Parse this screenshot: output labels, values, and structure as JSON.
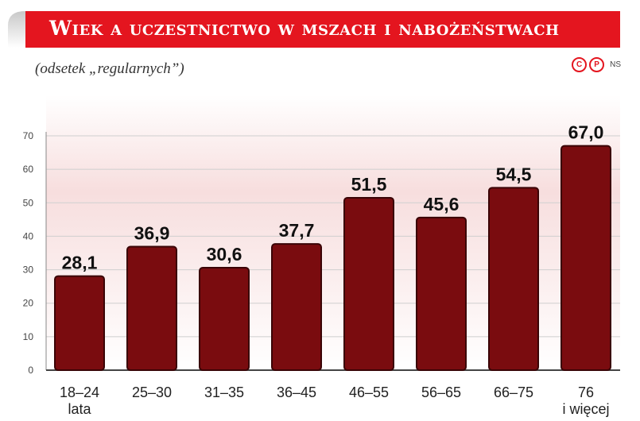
{
  "title": "Wiek a uczestnictwo w mszach i nabożeństwach",
  "subtitle": "(odsetek „regularnych”)",
  "credit": {
    "icons": [
      "copyright-icon",
      "registered-p-icon"
    ],
    "text": "NS"
  },
  "colors": {
    "accent": "#e4151f",
    "bar": "#7a0c0f",
    "bar_edge": "#3a0406",
    "background_gradient_top": "#f6dcdc"
  },
  "chart_data": {
    "type": "bar",
    "categories": [
      [
        "18–24",
        "lata"
      ],
      [
        "25–30"
      ],
      [
        "31–35"
      ],
      [
        "36–45"
      ],
      [
        "46–55"
      ],
      [
        "56–65"
      ],
      [
        "66–75"
      ],
      [
        "76",
        "i więcej"
      ]
    ],
    "values": [
      28.1,
      36.9,
      30.6,
      37.7,
      51.5,
      45.6,
      54.5,
      67.0
    ],
    "value_labels": [
      "28,1",
      "36,9",
      "30,6",
      "37,7",
      "51,5",
      "45,6",
      "54,5",
      "67,0"
    ],
    "yticks": [
      0,
      10,
      20,
      30,
      40,
      50,
      60,
      70
    ],
    "ylim": [
      0,
      70
    ],
    "grid": true,
    "legend": "none"
  }
}
